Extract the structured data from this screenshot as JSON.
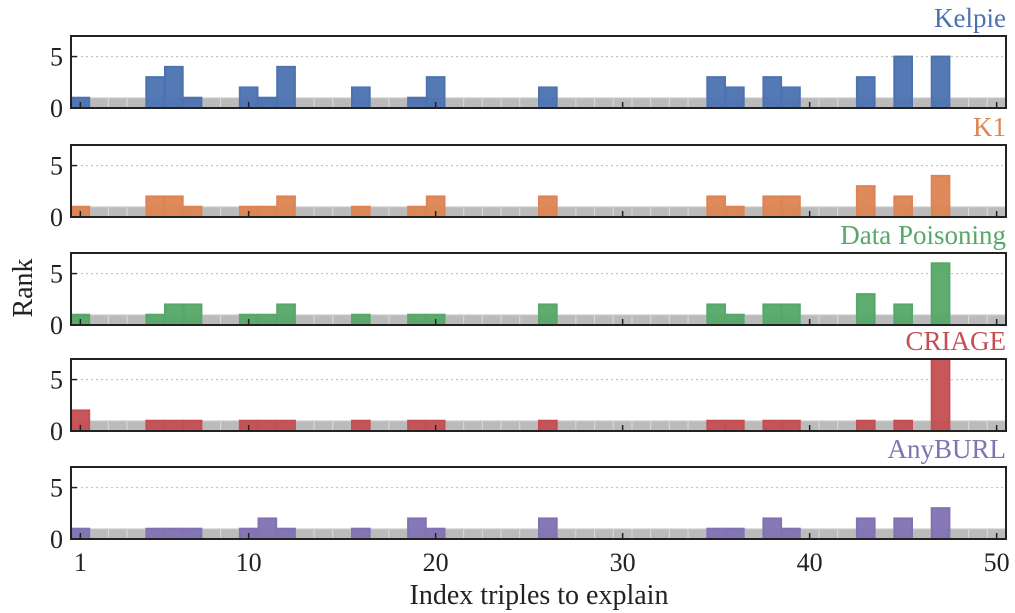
{
  "chart_data": {
    "type": "bar",
    "xlabel": "Index triples to explain",
    "ylabel": "Rank",
    "xlim": [
      1,
      50
    ],
    "ylim": [
      0,
      7
    ],
    "x_ticks": [
      1,
      10,
      20,
      30,
      40,
      50
    ],
    "y_ticks": [
      0,
      5
    ],
    "baseline_value": 1,
    "baseline_color": "#bbbbbb",
    "grid": "dotted horizontal at tick values",
    "series": [
      {
        "name": "Kelpie",
        "color": "#4c72b0",
        "values": [
          1,
          0,
          0,
          0,
          3,
          4,
          1,
          0,
          0,
          2,
          1,
          4,
          0,
          0,
          0,
          2,
          0,
          0,
          1,
          3,
          0,
          0,
          0,
          0,
          0,
          2,
          0,
          0,
          0,
          0,
          0,
          0,
          0,
          0,
          3,
          2,
          0,
          3,
          2,
          0,
          0,
          0,
          3,
          0,
          5,
          0,
          5,
          0,
          0,
          0
        ]
      },
      {
        "name": "K1",
        "color": "#dd8452",
        "values": [
          1,
          0,
          0,
          0,
          2,
          2,
          1,
          0,
          0,
          1,
          1,
          2,
          0,
          0,
          0,
          1,
          0,
          0,
          1,
          2,
          0,
          0,
          0,
          0,
          0,
          2,
          0,
          0,
          0,
          0,
          0,
          0,
          0,
          0,
          2,
          1,
          0,
          2,
          2,
          0,
          0,
          0,
          3,
          0,
          2,
          0,
          4,
          0,
          0,
          0
        ]
      },
      {
        "name": "Data Poisoning",
        "color": "#55a868",
        "values": [
          1,
          0,
          0,
          0,
          1,
          2,
          2,
          0,
          0,
          1,
          1,
          2,
          0,
          0,
          0,
          1,
          0,
          0,
          1,
          1,
          0,
          0,
          0,
          0,
          0,
          2,
          0,
          0,
          0,
          0,
          0,
          0,
          0,
          0,
          2,
          1,
          0,
          2,
          2,
          0,
          0,
          0,
          3,
          0,
          2,
          0,
          6,
          0,
          0,
          0
        ]
      },
      {
        "name": "CRIAGE",
        "color": "#c44e52",
        "values": [
          2,
          0,
          0,
          0,
          1,
          1,
          1,
          0,
          0,
          1,
          1,
          1,
          0,
          0,
          0,
          1,
          0,
          0,
          1,
          1,
          0,
          0,
          0,
          0,
          0,
          1,
          0,
          0,
          0,
          0,
          0,
          0,
          0,
          0,
          1,
          1,
          0,
          1,
          1,
          0,
          0,
          0,
          1,
          0,
          1,
          0,
          7,
          0,
          0,
          0
        ]
      },
      {
        "name": "AnyBURL",
        "color": "#8172b3",
        "values": [
          1,
          0,
          0,
          0,
          1,
          1,
          1,
          0,
          0,
          1,
          2,
          1,
          0,
          0,
          0,
          1,
          0,
          0,
          2,
          1,
          0,
          0,
          0,
          0,
          0,
          2,
          0,
          0,
          0,
          0,
          0,
          0,
          0,
          0,
          1,
          1,
          0,
          2,
          1,
          0,
          0,
          0,
          2,
          0,
          2,
          0,
          3,
          0,
          0,
          0
        ]
      }
    ]
  }
}
